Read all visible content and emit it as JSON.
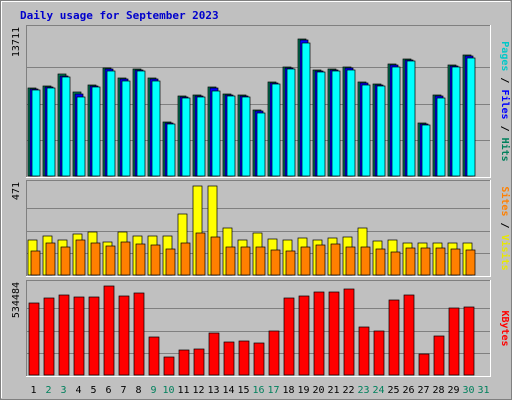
{
  "chart_data": {
    "type": "bar",
    "title": "Daily usage for September 2023",
    "categories": [
      "1",
      "2",
      "3",
      "4",
      "5",
      "6",
      "7",
      "8",
      "9",
      "10",
      "11",
      "12",
      "13",
      "14",
      "15",
      "16",
      "17",
      "18",
      "19",
      "20",
      "21",
      "22",
      "23",
      "24",
      "25",
      "26",
      "27",
      "28",
      "29",
      "30",
      "31"
    ],
    "weekend_days": [
      "2",
      "3",
      "9",
      "10",
      "16",
      "17",
      "23",
      "24",
      "30",
      "31"
    ],
    "colors": {
      "background": "#c0c0c0",
      "title": "#0000cc",
      "hits": "#00805c",
      "files": "#0000ff",
      "pages": "#00ffff",
      "visits": "#ffff00",
      "sites": "#ff8000",
      "kbytes": "#ff0000",
      "weekday": "#000000",
      "weekend": "#00805c"
    },
    "panels": [
      {
        "id": "pages-files-hits",
        "ymax_label": "13711",
        "ylim": [
          0,
          13711
        ],
        "label_parts": [
          {
            "text": "Pages",
            "color": "#00c8c8"
          },
          {
            "text": " / ",
            "color": "#000000"
          },
          {
            "text": "Files",
            "color": "#0000ff"
          },
          {
            "text": " / ",
            "color": "#000000"
          },
          {
            "text": "Hits",
            "color": "#00805c"
          }
        ],
        "series": [
          {
            "name": "Hits",
            "color": "#00805c",
            "values": [
              8300,
              8500,
              9600,
              7900,
              8600,
              10200,
              9300,
              10100,
              9300,
              5100,
              7600,
              7700,
              8400,
              7800,
              7700,
              6200,
              8900,
              10300,
              13000,
              10000,
              10100,
              10300,
              8900,
              8700,
              10600,
              11100,
              5000,
              7700,
              10500,
              11400,
              null
            ]
          },
          {
            "name": "Files",
            "color": "#0000ff",
            "values": [
              8200,
              8400,
              9500,
              7800,
              8500,
              10100,
              9200,
              10000,
              9200,
              5000,
              7500,
              7600,
              8300,
              7700,
              7600,
              6100,
              8800,
              10200,
              12900,
              9900,
              10000,
              10200,
              8800,
              8600,
              10500,
              11000,
              4900,
              7600,
              10400,
              11300,
              null
            ]
          },
          {
            "name": "Pages",
            "color": "#00ffff",
            "values": [
              8100,
              8300,
              9400,
              7500,
              8400,
              9900,
              9000,
              9900,
              9000,
              4900,
              7400,
              7500,
              8000,
              7600,
              7500,
              6000,
              8700,
              10100,
              12600,
              9800,
              9900,
              10000,
              8600,
              8500,
              10300,
              10900,
              4800,
              7400,
              10300,
              11200,
              null
            ]
          }
        ]
      },
      {
        "id": "visits-sites",
        "ymax_label": "471",
        "ylim": [
          0,
          471
        ],
        "label_parts": [
          {
            "text": "Sites",
            "color": "#ff8000"
          },
          {
            "text": " / ",
            "color": "#000000"
          },
          {
            "text": "Visits",
            "color": "#e8e800"
          }
        ],
        "series": [
          {
            "name": "Visits",
            "color": "#ffff00",
            "values": [
              185,
              205,
              185,
              215,
              230,
              175,
              225,
              205,
              205,
              205,
              325,
              471,
              471,
              250,
              185,
              220,
              190,
              185,
              195,
              185,
              195,
              200,
              250,
              180,
              185,
              170,
              170,
              170,
              170,
              170,
              null
            ]
          },
          {
            "name": "Sites",
            "color": "#ff8000",
            "values": [
              125,
              170,
              150,
              185,
              170,
              155,
              175,
              165,
              160,
              140,
              170,
              220,
              200,
              150,
              150,
              150,
              130,
              125,
              150,
              160,
              165,
              150,
              150,
              140,
              120,
              145,
              145,
              145,
              140,
              130,
              null
            ]
          }
        ]
      },
      {
        "id": "kbytes",
        "ymax_label": "534484",
        "ylim": [
          0,
          534484
        ],
        "label_parts": [
          {
            "text": "KBytes",
            "color": "#ff0000"
          }
        ],
        "series": [
          {
            "name": "KBytes",
            "color": "#ff0000",
            "values": [
              435000,
              460000,
              478000,
              468000,
              468000,
              535000,
              477000,
              495000,
              230000,
              110000,
              150000,
              155000,
              255000,
              200000,
              203000,
              190000,
              262000,
              460000,
              475000,
              500000,
              500000,
              515000,
              290000,
              265000,
              450000,
              480000,
              125000,
              235000,
              400000,
              410000,
              null
            ]
          }
        ]
      }
    ]
  }
}
